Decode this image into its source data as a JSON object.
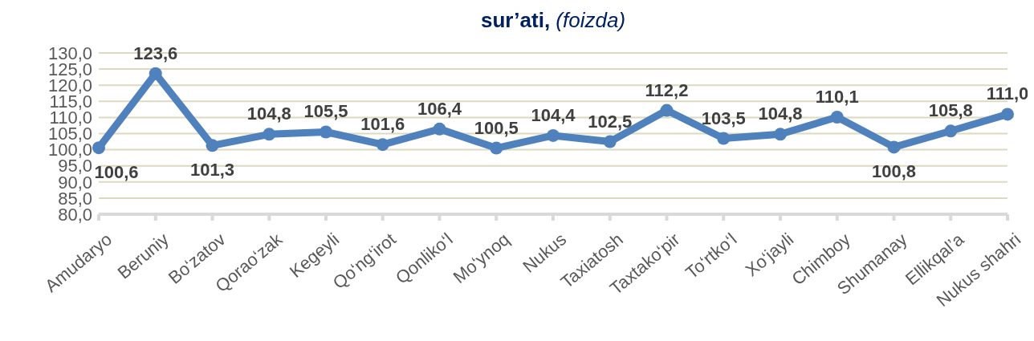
{
  "chart_data": {
    "type": "line",
    "title": "sur’ati, (foizda)",
    "categories": [
      "Amudaryo",
      "Beruniy",
      "Bo‘zatov",
      "Qorao‘zak",
      "Kegeyli",
      "Qo‘ng‘irot",
      "Qonliko‘l",
      "Mo‘ynoq",
      "Nukus",
      "Taxiatosh",
      "Taxtako‘pir",
      "To‘rtko‘l",
      "Xo‘jayli",
      "Chimboy",
      "Shumanay",
      "Ellikqal’a",
      "Nukus shahri"
    ],
    "series": [
      {
        "color": "#4f81bd",
        "values": [
          100.6,
          123.6,
          101.3,
          104.8,
          105.5,
          101.6,
          106.4,
          100.5,
          104.4,
          102.5,
          112.2,
          103.5,
          104.8,
          110.1,
          100.8,
          105.8,
          111.0
        ]
      }
    ],
    "value_labels": [
      "100,6",
      "123,6",
      "101,3",
      "104,8",
      "105,5",
      "101,6",
      "106,4",
      "100,5",
      "104,4",
      "102,5",
      "112,2",
      "103,5",
      "104,8",
      "110,1",
      "100,8",
      "105,8",
      "111,0"
    ],
    "ylim": [
      80,
      130
    ],
    "yticks": [
      {
        "value": 80,
        "label": "80,0"
      },
      {
        "value": 85,
        "label": "85,0"
      },
      {
        "value": 90,
        "label": "90,0"
      },
      {
        "value": 95,
        "label": "95,0"
      },
      {
        "value": 100,
        "label": "100,0"
      },
      {
        "value": 105,
        "label": "105,0"
      },
      {
        "value": 110,
        "label": "110,0"
      },
      {
        "value": 115,
        "label": "115,0"
      },
      {
        "value": 120,
        "label": "120,0"
      },
      {
        "value": 125,
        "label": "125,0"
      },
      {
        "value": 130,
        "label": "130,0"
      }
    ],
    "grid": "y",
    "marker": "circle",
    "line_style": "solid"
  }
}
